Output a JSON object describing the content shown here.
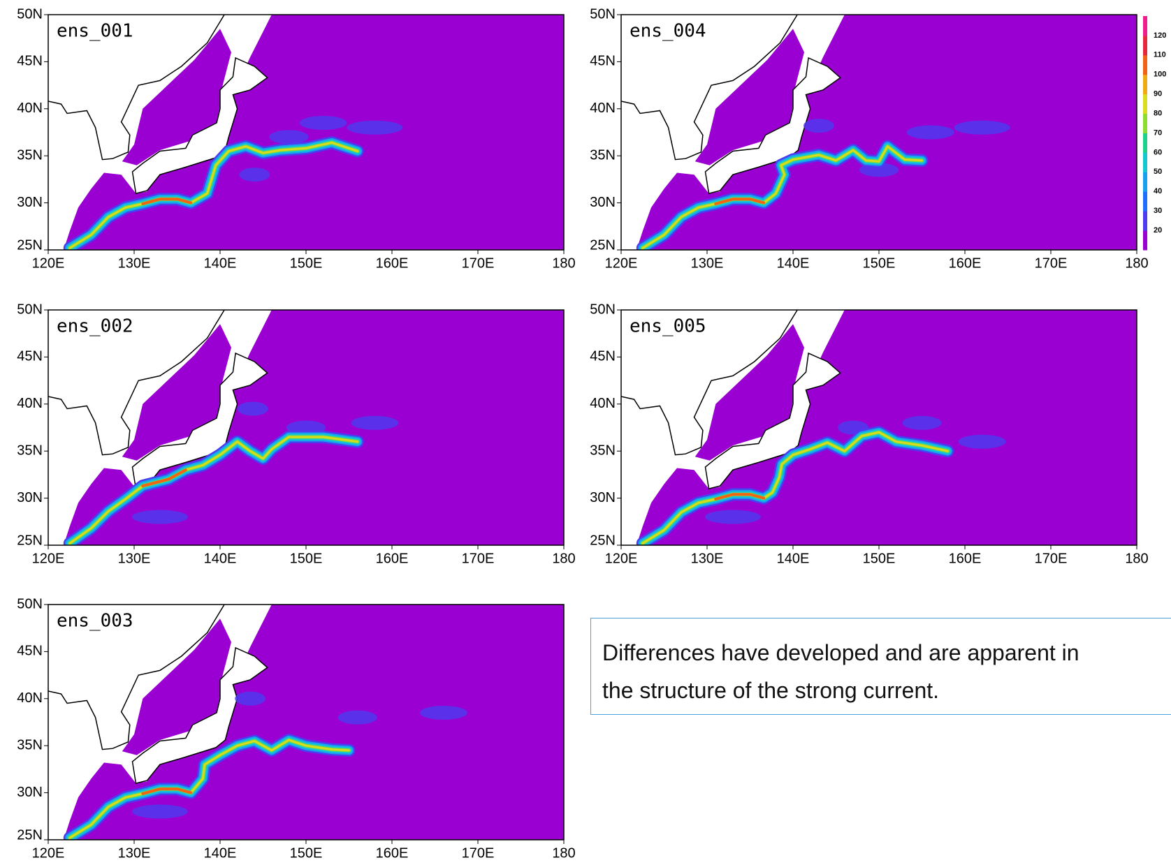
{
  "panels": [
    {
      "label": "ens_001"
    },
    {
      "label": "ens_004"
    },
    {
      "label": "ens_002"
    },
    {
      "label": "ens_005"
    },
    {
      "label": "ens_003"
    }
  ],
  "lat_ticks": [
    {
      "value": 25,
      "label": "25N"
    },
    {
      "value": 30,
      "label": "30N"
    },
    {
      "value": 35,
      "label": "35N"
    },
    {
      "value": 40,
      "label": "40N"
    },
    {
      "value": 45,
      "label": "45N"
    },
    {
      "value": 50,
      "label": "50N"
    }
  ],
  "lon_ticks": [
    {
      "value": 120,
      "label": "120E"
    },
    {
      "value": 130,
      "label": "130E"
    },
    {
      "value": 140,
      "label": "140E"
    },
    {
      "value": 150,
      "label": "150E"
    },
    {
      "value": 160,
      "label": "160E"
    },
    {
      "value": 170,
      "label": "170E"
    },
    {
      "value": 180,
      "label": "180"
    }
  ],
  "colorbar": {
    "labels": [
      20,
      30,
      40,
      50,
      60,
      70,
      80,
      90,
      100,
      110,
      120
    ],
    "colors": [
      "#9b00d2",
      "#4b3cf0",
      "#1e6eff",
      "#18a0f0",
      "#14c8d2",
      "#1ed28c",
      "#8cdc32",
      "#dcdc1e",
      "#f0aa14",
      "#f06414",
      "#e6283c",
      "#f01e8c"
    ]
  },
  "note": {
    "lines": [
      "Differences have developed and are apparent in",
      "the structure of the strong current."
    ]
  }
}
